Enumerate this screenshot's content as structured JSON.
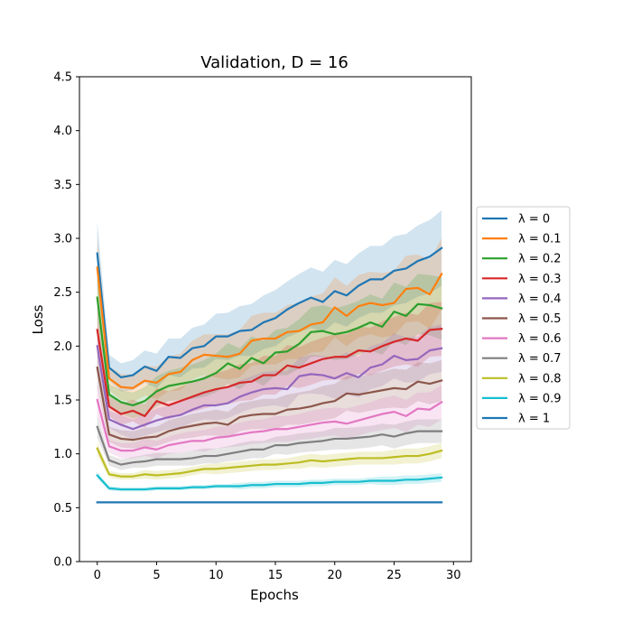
{
  "chart_data": {
    "type": "line",
    "title": "Validation, D = 16",
    "xlabel": "Epochs",
    "ylabel": "Loss",
    "xlim": [
      -1.5,
      31.5
    ],
    "ylim": [
      0.0,
      4.5
    ],
    "xticks": [
      "0",
      "5",
      "10",
      "15",
      "20",
      "25",
      "30"
    ],
    "yticks": [
      "0.0",
      "0.5",
      "1.0",
      "1.5",
      "2.0",
      "2.5",
      "3.0",
      "3.5",
      "4.0",
      "4.5"
    ],
    "legend_position": "right",
    "band_opacity": 0.2,
    "x": [
      0,
      1,
      2,
      3,
      4,
      5,
      6,
      7,
      8,
      9,
      10,
      11,
      12,
      13,
      14,
      15,
      16,
      17,
      18,
      19,
      20,
      21,
      22,
      23,
      24,
      25,
      26,
      27,
      28,
      29
    ],
    "series": [
      {
        "name": "λ = 0",
        "color": "#1f77b4",
        "values": [
          2.86,
          1.8,
          1.71,
          1.73,
          1.81,
          1.77,
          1.9,
          1.89,
          1.98,
          2.0,
          2.09,
          2.09,
          2.14,
          2.15,
          2.22,
          2.26,
          2.34,
          2.4,
          2.45,
          2.41,
          2.51,
          2.47,
          2.56,
          2.62,
          2.62,
          2.7,
          2.72,
          2.79,
          2.83,
          2.91
        ],
        "band": [
          0.3,
          0.12,
          0.13,
          0.14,
          0.15,
          0.16,
          0.17,
          0.18,
          0.19,
          0.2,
          0.21,
          0.22,
          0.23,
          0.24,
          0.25,
          0.26,
          0.26,
          0.27,
          0.28,
          0.28,
          0.29,
          0.29,
          0.3,
          0.31,
          0.31,
          0.32,
          0.32,
          0.33,
          0.34,
          0.35
        ]
      },
      {
        "name": "λ = 0.1",
        "color": "#ff7f0e",
        "values": [
          2.73,
          1.7,
          1.62,
          1.61,
          1.68,
          1.66,
          1.74,
          1.76,
          1.87,
          1.92,
          1.91,
          1.9,
          1.93,
          2.05,
          2.07,
          2.07,
          2.13,
          2.14,
          2.2,
          2.22,
          2.36,
          2.28,
          2.37,
          2.4,
          2.38,
          2.4,
          2.53,
          2.54,
          2.48,
          2.67
        ],
        "band": [
          0.28,
          0.11,
          0.12,
          0.13,
          0.14,
          0.15,
          0.16,
          0.17,
          0.18,
          0.19,
          0.2,
          0.21,
          0.22,
          0.23,
          0.24,
          0.24,
          0.25,
          0.26,
          0.26,
          0.27,
          0.28,
          0.28,
          0.29,
          0.29,
          0.3,
          0.3,
          0.31,
          0.31,
          0.32,
          0.33
        ]
      },
      {
        "name": "λ = 0.2",
        "color": "#2ca02c",
        "values": [
          2.45,
          1.55,
          1.48,
          1.45,
          1.49,
          1.58,
          1.63,
          1.65,
          1.67,
          1.7,
          1.75,
          1.84,
          1.79,
          1.89,
          1.84,
          1.94,
          1.95,
          2.02,
          2.13,
          2.14,
          2.11,
          2.13,
          2.17,
          2.22,
          2.18,
          2.32,
          2.28,
          2.39,
          2.38,
          2.35
        ],
        "band": [
          0.25,
          0.1,
          0.11,
          0.12,
          0.13,
          0.14,
          0.14,
          0.15,
          0.16,
          0.17,
          0.18,
          0.19,
          0.19,
          0.2,
          0.21,
          0.21,
          0.22,
          0.23,
          0.23,
          0.24,
          0.24,
          0.25,
          0.25,
          0.26,
          0.26,
          0.27,
          0.27,
          0.28,
          0.28,
          0.29
        ]
      },
      {
        "name": "λ = 0.3",
        "color": "#d62728",
        "values": [
          2.15,
          1.44,
          1.37,
          1.4,
          1.35,
          1.49,
          1.45,
          1.49,
          1.53,
          1.57,
          1.6,
          1.62,
          1.66,
          1.67,
          1.73,
          1.73,
          1.82,
          1.8,
          1.84,
          1.88,
          1.9,
          1.9,
          1.96,
          1.95,
          2.0,
          2.04,
          2.07,
          2.05,
          2.15,
          2.16
        ],
        "band": [
          0.22,
          0.09,
          0.1,
          0.1,
          0.11,
          0.12,
          0.13,
          0.13,
          0.14,
          0.15,
          0.15,
          0.16,
          0.17,
          0.17,
          0.18,
          0.18,
          0.19,
          0.19,
          0.2,
          0.2,
          0.21,
          0.21,
          0.22,
          0.22,
          0.23,
          0.23,
          0.24,
          0.24,
          0.25,
          0.25
        ]
      },
      {
        "name": "λ = 0.4",
        "color": "#9467bd",
        "values": [
          2.0,
          1.32,
          1.27,
          1.23,
          1.27,
          1.31,
          1.34,
          1.36,
          1.41,
          1.45,
          1.45,
          1.47,
          1.53,
          1.57,
          1.6,
          1.61,
          1.6,
          1.72,
          1.74,
          1.73,
          1.7,
          1.75,
          1.71,
          1.8,
          1.83,
          1.91,
          1.87,
          1.88,
          1.96,
          1.98
        ],
        "band": [
          0.2,
          0.08,
          0.09,
          0.09,
          0.1,
          0.11,
          0.11,
          0.12,
          0.12,
          0.13,
          0.14,
          0.14,
          0.15,
          0.15,
          0.16,
          0.16,
          0.17,
          0.17,
          0.18,
          0.18,
          0.19,
          0.19,
          0.19,
          0.2,
          0.2,
          0.21,
          0.21,
          0.21,
          0.22,
          0.22
        ]
      },
      {
        "name": "λ = 0.5",
        "color": "#8c564b",
        "values": [
          1.8,
          1.18,
          1.14,
          1.13,
          1.15,
          1.16,
          1.21,
          1.24,
          1.26,
          1.28,
          1.29,
          1.27,
          1.34,
          1.36,
          1.37,
          1.37,
          1.41,
          1.42,
          1.44,
          1.47,
          1.49,
          1.56,
          1.55,
          1.57,
          1.59,
          1.61,
          1.6,
          1.67,
          1.65,
          1.68
        ],
        "band": [
          0.18,
          0.07,
          0.08,
          0.08,
          0.09,
          0.09,
          0.1,
          0.1,
          0.11,
          0.11,
          0.12,
          0.12,
          0.13,
          0.13,
          0.14,
          0.14,
          0.14,
          0.15,
          0.15,
          0.16,
          0.16,
          0.16,
          0.17,
          0.17,
          0.17,
          0.18,
          0.18,
          0.18,
          0.19,
          0.19
        ]
      },
      {
        "name": "λ = 0.6",
        "color": "#e377c2",
        "values": [
          1.5,
          1.07,
          1.03,
          1.03,
          1.06,
          1.04,
          1.08,
          1.1,
          1.12,
          1.12,
          1.15,
          1.16,
          1.18,
          1.2,
          1.21,
          1.23,
          1.23,
          1.25,
          1.27,
          1.29,
          1.3,
          1.28,
          1.31,
          1.34,
          1.37,
          1.39,
          1.35,
          1.42,
          1.41,
          1.48
        ],
        "band": [
          0.15,
          0.06,
          0.07,
          0.07,
          0.08,
          0.08,
          0.08,
          0.09,
          0.09,
          0.1,
          0.1,
          0.1,
          0.11,
          0.11,
          0.11,
          0.12,
          0.12,
          0.12,
          0.13,
          0.13,
          0.13,
          0.14,
          0.14,
          0.14,
          0.15,
          0.15,
          0.15,
          0.15,
          0.16,
          0.16
        ]
      },
      {
        "name": "λ = 0.7",
        "color": "#7f7f7f",
        "values": [
          1.25,
          0.94,
          0.9,
          0.92,
          0.93,
          0.95,
          0.95,
          0.95,
          0.96,
          0.98,
          0.98,
          1.0,
          1.02,
          1.04,
          1.04,
          1.08,
          1.08,
          1.1,
          1.11,
          1.12,
          1.14,
          1.14,
          1.15,
          1.16,
          1.18,
          1.16,
          1.19,
          1.21,
          1.21,
          1.21
        ],
        "band": [
          0.1,
          0.05,
          0.05,
          0.05,
          0.06,
          0.06,
          0.06,
          0.06,
          0.07,
          0.07,
          0.07,
          0.07,
          0.08,
          0.08,
          0.08,
          0.08,
          0.09,
          0.09,
          0.09,
          0.09,
          0.1,
          0.1,
          0.1,
          0.1,
          0.1,
          0.11,
          0.11,
          0.11,
          0.11,
          0.11
        ]
      },
      {
        "name": "λ = 0.8",
        "color": "#bcbd22",
        "values": [
          1.05,
          0.81,
          0.79,
          0.79,
          0.81,
          0.8,
          0.81,
          0.82,
          0.84,
          0.86,
          0.86,
          0.87,
          0.88,
          0.89,
          0.9,
          0.9,
          0.91,
          0.92,
          0.94,
          0.93,
          0.94,
          0.95,
          0.96,
          0.96,
          0.96,
          0.97,
          0.98,
          0.98,
          1.0,
          1.03
        ],
        "band": [
          0.06,
          0.03,
          0.03,
          0.03,
          0.04,
          0.04,
          0.04,
          0.04,
          0.04,
          0.04,
          0.05,
          0.05,
          0.05,
          0.05,
          0.05,
          0.05,
          0.05,
          0.06,
          0.06,
          0.06,
          0.06,
          0.06,
          0.06,
          0.06,
          0.06,
          0.07,
          0.07,
          0.07,
          0.07,
          0.07
        ]
      },
      {
        "name": "λ = 0.9",
        "color": "#17becf",
        "values": [
          0.8,
          0.68,
          0.67,
          0.67,
          0.67,
          0.68,
          0.68,
          0.68,
          0.69,
          0.69,
          0.7,
          0.7,
          0.7,
          0.71,
          0.71,
          0.72,
          0.72,
          0.72,
          0.73,
          0.73,
          0.74,
          0.74,
          0.74,
          0.75,
          0.75,
          0.75,
          0.76,
          0.76,
          0.77,
          0.78
        ],
        "band": [
          0.03,
          0.02,
          0.02,
          0.02,
          0.02,
          0.02,
          0.02,
          0.02,
          0.02,
          0.02,
          0.02,
          0.02,
          0.03,
          0.03,
          0.03,
          0.03,
          0.03,
          0.03,
          0.03,
          0.03,
          0.03,
          0.03,
          0.03,
          0.03,
          0.04,
          0.04,
          0.04,
          0.04,
          0.04,
          0.04
        ]
      },
      {
        "name": "λ = 1",
        "color": "#1f77b4",
        "values": [
          0.55,
          0.55,
          0.55,
          0.55,
          0.55,
          0.55,
          0.55,
          0.55,
          0.55,
          0.55,
          0.55,
          0.55,
          0.55,
          0.55,
          0.55,
          0.55,
          0.55,
          0.55,
          0.55,
          0.55,
          0.55,
          0.55,
          0.55,
          0.55,
          0.55,
          0.55,
          0.55,
          0.55,
          0.55,
          0.55
        ],
        "band": [
          0.005,
          0.005,
          0.005,
          0.005,
          0.005,
          0.005,
          0.005,
          0.005,
          0.005,
          0.005,
          0.005,
          0.005,
          0.005,
          0.005,
          0.005,
          0.005,
          0.005,
          0.005,
          0.005,
          0.005,
          0.005,
          0.005,
          0.005,
          0.005,
          0.005,
          0.005,
          0.005,
          0.005,
          0.005,
          0.005
        ]
      }
    ]
  }
}
